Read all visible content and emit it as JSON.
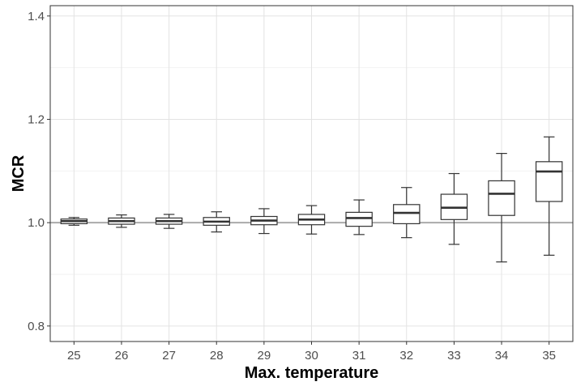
{
  "chart_data": {
    "type": "boxplot",
    "xlabel": "Max. temperature",
    "ylabel": "MCR",
    "ylim": [
      0.77,
      1.42
    ],
    "yticks": [
      0.8,
      1.0,
      1.2,
      1.4
    ],
    "ytick_labels": [
      "0.8",
      "1.0",
      "1.2",
      "1.4"
    ],
    "reference_line": 1.0,
    "grid": true,
    "categories": [
      "25",
      "26",
      "27",
      "28",
      "29",
      "30",
      "31",
      "32",
      "33",
      "34",
      "35"
    ],
    "boxes": [
      {
        "x": "25",
        "whisker_low": 0.995,
        "q1": 0.998,
        "median": 1.003,
        "q3": 1.007,
        "whisker_high": 1.01
      },
      {
        "x": "26",
        "whisker_low": 0.991,
        "q1": 0.997,
        "median": 1.003,
        "q3": 1.009,
        "whisker_high": 1.015
      },
      {
        "x": "27",
        "whisker_low": 0.989,
        "q1": 0.997,
        "median": 1.003,
        "q3": 1.009,
        "whisker_high": 1.016
      },
      {
        "x": "28",
        "whisker_low": 0.982,
        "q1": 0.995,
        "median": 1.002,
        "q3": 1.01,
        "whisker_high": 1.021
      },
      {
        "x": "29",
        "whisker_low": 0.979,
        "q1": 0.996,
        "median": 1.004,
        "q3": 1.012,
        "whisker_high": 1.027
      },
      {
        "x": "30",
        "whisker_low": 0.978,
        "q1": 0.996,
        "median": 1.006,
        "q3": 1.016,
        "whisker_high": 1.033
      },
      {
        "x": "31",
        "whisker_low": 0.977,
        "q1": 0.993,
        "median": 1.009,
        "q3": 1.02,
        "whisker_high": 1.044
      },
      {
        "x": "32",
        "whisker_low": 0.971,
        "q1": 0.998,
        "median": 1.019,
        "q3": 1.035,
        "whisker_high": 1.068
      },
      {
        "x": "33",
        "whisker_low": 0.958,
        "q1": 1.006,
        "median": 1.029,
        "q3": 1.055,
        "whisker_high": 1.095
      },
      {
        "x": "34",
        "whisker_low": 0.924,
        "q1": 1.014,
        "median": 1.056,
        "q3": 1.081,
        "whisker_high": 1.134
      },
      {
        "x": "35",
        "whisker_low": 0.937,
        "q1": 1.041,
        "median": 1.099,
        "q3": 1.118,
        "whisker_high": 1.166
      }
    ]
  }
}
